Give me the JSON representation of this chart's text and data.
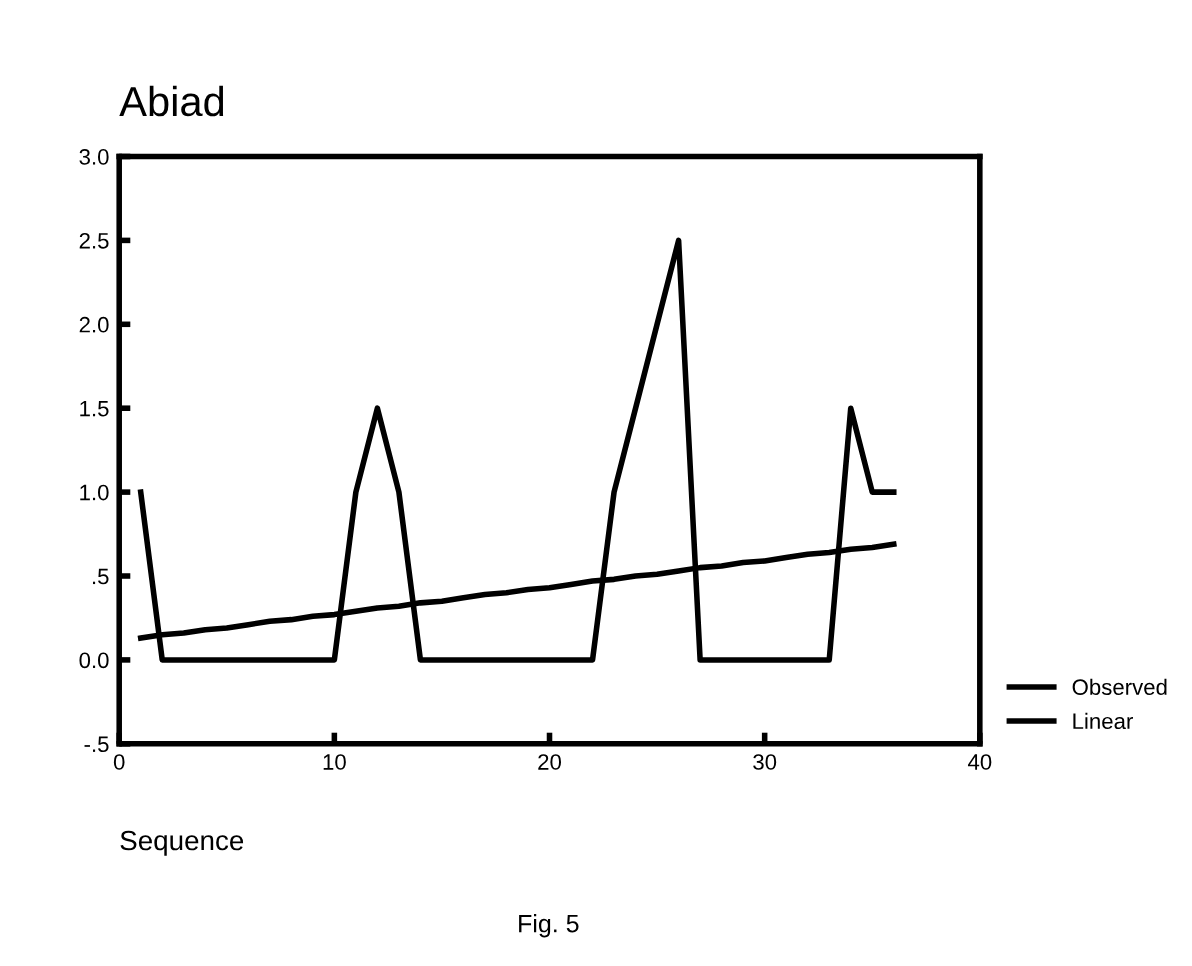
{
  "chart_data": {
    "type": "line",
    "title": "Abiad",
    "xlabel": "Sequence",
    "annotations": [
      "Fig. 5"
    ],
    "x": [
      1,
      2,
      3,
      4,
      5,
      6,
      7,
      8,
      9,
      10,
      11,
      12,
      13,
      14,
      15,
      16,
      17,
      18,
      19,
      20,
      21,
      22,
      23,
      24,
      25,
      26,
      27,
      28,
      29,
      30,
      31,
      32,
      33,
      34,
      35,
      36
    ],
    "series": [
      {
        "name": "Observed",
        "color": "#000000",
        "values": [
          1.0,
          0,
          0,
          0,
          0,
          0,
          0,
          0,
          0,
          0,
          1.0,
          1.5,
          1.0,
          0,
          0,
          0,
          0,
          0,
          0,
          0,
          0,
          0,
          1.0,
          1.5,
          2.0,
          2.5,
          0,
          0,
          0,
          0,
          0,
          0,
          0,
          1.5,
          1.0,
          1.0
        ]
      },
      {
        "name": "Linear",
        "color": "#000000",
        "values": [
          0.13,
          0.15,
          0.16,
          0.18,
          0.19,
          0.21,
          0.23,
          0.24,
          0.26,
          0.27,
          0.29,
          0.31,
          0.32,
          0.34,
          0.35,
          0.37,
          0.39,
          0.4,
          0.42,
          0.43,
          0.45,
          0.47,
          0.48,
          0.5,
          0.51,
          0.53,
          0.55,
          0.56,
          0.58,
          0.59,
          0.61,
          0.63,
          0.64,
          0.66,
          0.67,
          0.69
        ]
      }
    ],
    "xlim": [
      0,
      40
    ],
    "xticks": [
      0,
      10,
      20,
      30,
      40
    ],
    "ylim": [
      -0.5,
      3.0
    ],
    "yticks": [
      {
        "value": -0.5,
        "label": "-.5"
      },
      {
        "value": 0,
        "label": "0.0"
      },
      {
        "value": 0.5,
        "label": ".5"
      },
      {
        "value": 1.0,
        "label": "1.0"
      },
      {
        "value": 1.5,
        "label": "1.5"
      },
      {
        "value": 2.0,
        "label": "2.0"
      },
      {
        "value": 2.5,
        "label": "2.5"
      },
      {
        "value": 3.0,
        "label": "3.0"
      }
    ],
    "grid": false,
    "legend": "bottom right",
    "marker": "none",
    "line_style": "solid"
  }
}
